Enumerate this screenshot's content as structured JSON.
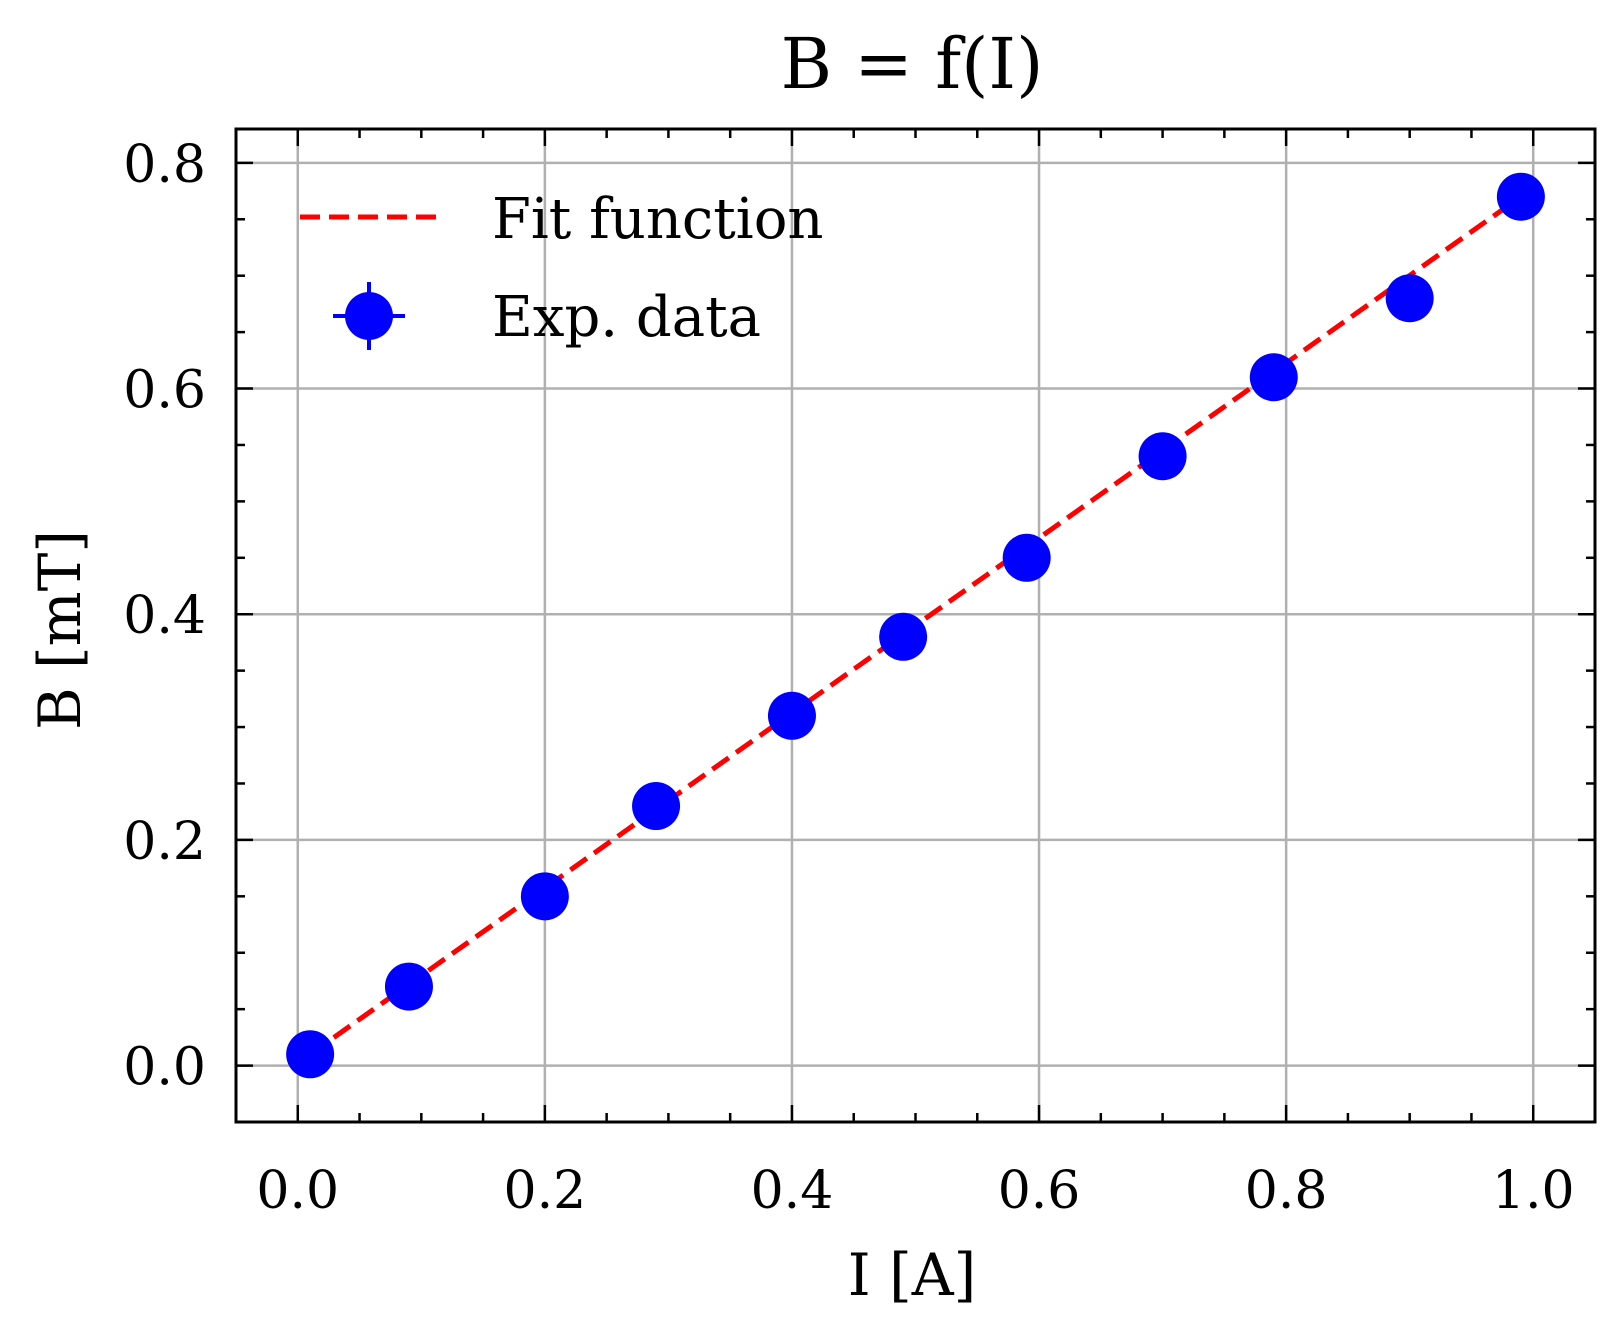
{
  "chart_data": {
    "type": "scatter",
    "title": "B = f(I)",
    "xlabel": "I [A]",
    "ylabel": "B [mT]",
    "xlim": [
      -0.05,
      1.05
    ],
    "ylim": [
      -0.05,
      0.83
    ],
    "xticks": [
      0.0,
      0.2,
      0.4,
      0.6,
      0.8,
      1.0
    ],
    "xtick_labels": [
      "0.0",
      "0.2",
      "0.4",
      "0.6",
      "0.8",
      "1.0"
    ],
    "yticks": [
      0.0,
      0.2,
      0.4,
      0.6,
      0.8
    ],
    "ytick_labels": [
      "0.0",
      "0.2",
      "0.4",
      "0.6",
      "0.8"
    ],
    "x_minor_step": 0.05,
    "y_minor_step": 0.05,
    "grid": true,
    "legend_position": "top-left",
    "series": [
      {
        "name": "Fit function",
        "kind": "line",
        "style": "dashed",
        "color": "#ff0000",
        "x": [
          0.01,
          0.99
        ],
        "y": [
          0.01,
          0.77
        ]
      },
      {
        "name": "Exp. data",
        "kind": "errorbar-points",
        "color": "#0000ff",
        "x": [
          0.01,
          0.09,
          0.2,
          0.29,
          0.4,
          0.49,
          0.59,
          0.7,
          0.79,
          0.9,
          0.99
        ],
        "y": [
          0.01,
          0.07,
          0.15,
          0.23,
          0.31,
          0.38,
          0.45,
          0.54,
          0.61,
          0.68,
          0.77
        ]
      }
    ]
  }
}
